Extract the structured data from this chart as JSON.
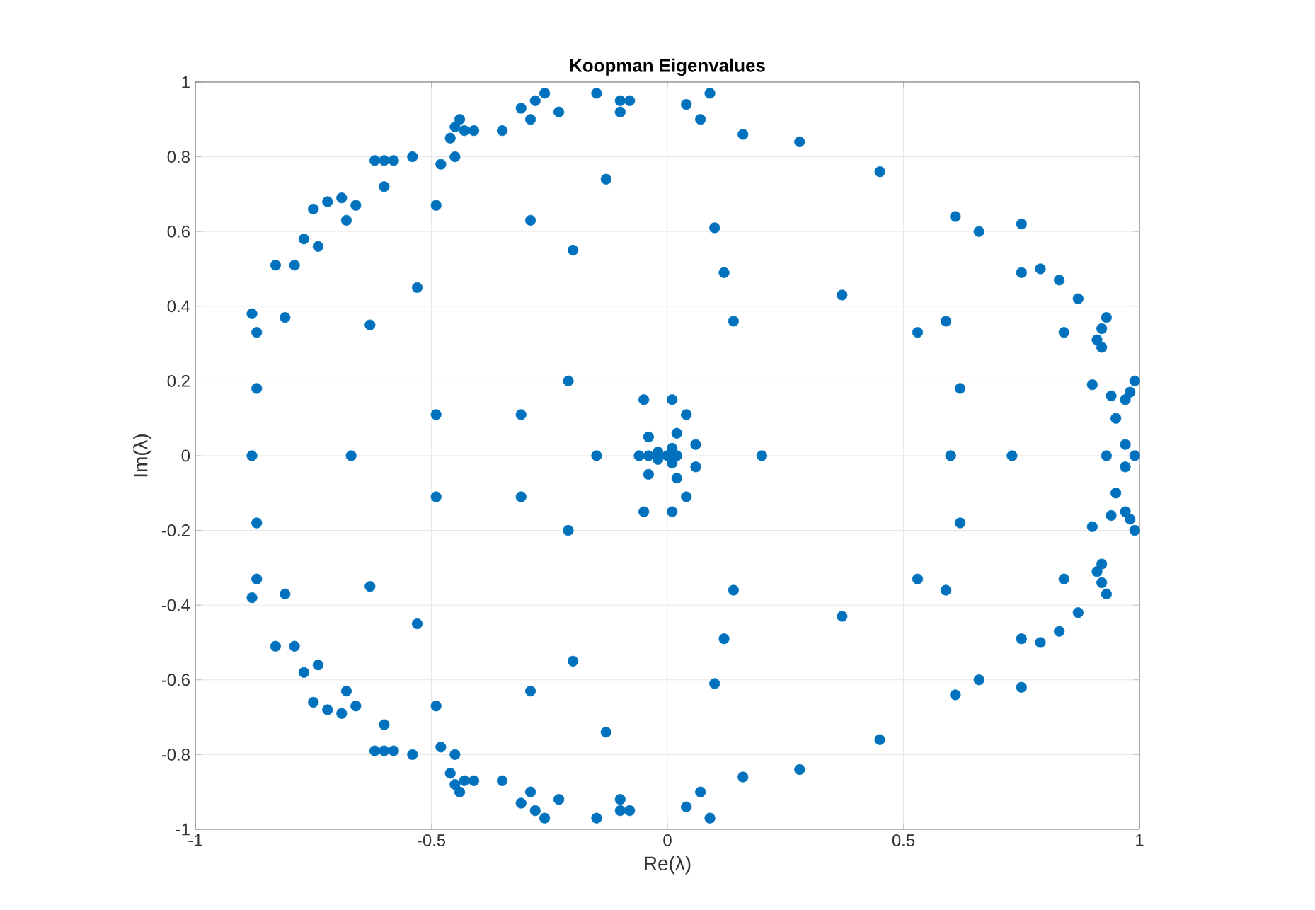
{
  "chart_data": {
    "type": "scatter",
    "title": "Koopman Eigenvalues",
    "xlabel": "Re(λ)",
    "ylabel": "Im(λ)",
    "x": [
      -0.88,
      -0.87,
      -0.81,
      -0.87,
      -0.83,
      -0.79,
      -0.77,
      -0.74,
      -0.75,
      -0.72,
      -0.69,
      -0.66,
      -0.68,
      -0.62,
      -0.6,
      -0.58,
      -0.54,
      -0.6,
      -0.63,
      -0.53,
      -0.49,
      -0.48,
      -0.45,
      -0.46,
      -0.44,
      -0.45,
      -0.43,
      -0.41,
      -0.35,
      -0.31,
      -0.29,
      -0.28,
      -0.26,
      -0.23,
      -0.15,
      -0.1,
      -0.08,
      -0.1,
      -0.13,
      -0.29,
      -0.2,
      -0.21,
      -0.31,
      -0.49,
      -0.05,
      0.01,
      0.04,
      -0.04,
      0.02,
      0.06,
      -0.02,
      0.01,
      0.04,
      0.09,
      0.07,
      0.16,
      0.28,
      0.45,
      0.1,
      0.12,
      0.14,
      0.37,
      0.61,
      0.66,
      0.75,
      0.75,
      0.79,
      0.83,
      0.87,
      0.93,
      0.92,
      0.91,
      0.92,
      0.84,
      0.53,
      0.59,
      0.62,
      0.9,
      0.94,
      0.99,
      0.98,
      0.97,
      0.95,
      0.97,
      -0.88,
      -0.87,
      -0.81,
      -0.87,
      -0.83,
      -0.79,
      -0.77,
      -0.74,
      -0.75,
      -0.72,
      -0.69,
      -0.66,
      -0.68,
      -0.62,
      -0.6,
      -0.58,
      -0.54,
      -0.6,
      -0.63,
      -0.53,
      -0.49,
      -0.48,
      -0.45,
      -0.46,
      -0.44,
      -0.45,
      -0.43,
      -0.41,
      -0.35,
      -0.31,
      -0.29,
      -0.28,
      -0.26,
      -0.23,
      -0.15,
      -0.1,
      -0.08,
      -0.1,
      -0.13,
      -0.29,
      -0.2,
      -0.21,
      -0.31,
      -0.49,
      -0.05,
      0.01,
      0.04,
      -0.04,
      0.02,
      0.06,
      -0.02,
      0.01,
      0.04,
      0.09,
      0.07,
      0.16,
      0.28,
      0.45,
      0.1,
      0.12,
      0.14,
      0.37,
      0.61,
      0.66,
      0.75,
      0.75,
      0.79,
      0.83,
      0.87,
      0.93,
      0.92,
      0.91,
      0.92,
      0.84,
      0.53,
      0.59,
      0.62,
      0.9,
      0.94,
      0.99,
      0.98,
      0.97,
      0.95,
      0.97,
      -0.88,
      -0.67,
      -0.15,
      -0.06,
      -0.04,
      0,
      0.02,
      0.2,
      0.6,
      0.73,
      0.93,
      0.99
    ],
    "values": [
      0.38,
      0.33,
      0.37,
      0.18,
      0.51,
      0.51,
      0.58,
      0.56,
      0.66,
      0.68,
      0.69,
      0.67,
      0.63,
      0.79,
      0.79,
      0.79,
      0.8,
      0.72,
      0.35,
      0.45,
      0.67,
      0.78,
      0.8,
      0.85,
      0.9,
      0.88,
      0.87,
      0.87,
      0.87,
      0.93,
      0.9,
      0.95,
      0.97,
      0.92,
      0.97,
      0.95,
      0.95,
      0.92,
      0.74,
      0.63,
      0.55,
      0.2,
      0.11,
      0.11,
      0.15,
      0.15,
      0.11,
      0.05,
      0.06,
      0.03,
      0.01,
      0.02,
      0.94,
      0.97,
      0.9,
      0.86,
      0.84,
      0.76,
      0.61,
      0.49,
      0.36,
      0.43,
      0.64,
      0.6,
      0.62,
      0.49,
      0.5,
      0.47,
      0.42,
      0.37,
      0.34,
      0.31,
      0.29,
      0.33,
      0.33,
      0.36,
      0.18,
      0.19,
      0.16,
      0.2,
      0.17,
      0.15,
      0.1,
      0.03,
      -0.38,
      -0.33,
      -0.37,
      -0.18,
      -0.51,
      -0.51,
      -0.58,
      -0.56,
      -0.66,
      -0.68,
      -0.69,
      -0.67,
      -0.63,
      -0.79,
      -0.79,
      -0.79,
      -0.8,
      -0.72,
      -0.35,
      -0.45,
      -0.67,
      -0.78,
      -0.8,
      -0.85,
      -0.9,
      -0.88,
      -0.87,
      -0.87,
      -0.87,
      -0.93,
      -0.9,
      -0.95,
      -0.97,
      -0.92,
      -0.97,
      -0.95,
      -0.95,
      -0.92,
      -0.74,
      -0.63,
      -0.55,
      -0.2,
      -0.11,
      -0.11,
      -0.15,
      -0.15,
      -0.11,
      -0.05,
      -0.06,
      -0.03,
      -0.01,
      -0.02,
      -0.94,
      -0.97,
      -0.9,
      -0.86,
      -0.84,
      -0.76,
      -0.61,
      -0.49,
      -0.36,
      -0.43,
      -0.64,
      -0.6,
      -0.62,
      -0.49,
      -0.5,
      -0.47,
      -0.42,
      -0.37,
      -0.34,
      -0.31,
      -0.29,
      -0.33,
      -0.33,
      -0.36,
      -0.18,
      -0.19,
      -0.16,
      -0.2,
      -0.17,
      -0.15,
      -0.1,
      -0.03,
      0,
      0,
      0,
      0,
      0,
      0,
      0,
      0,
      0,
      0,
      0,
      0
    ],
    "color": "#0072bd",
    "xlim": [
      -1,
      1
    ],
    "ylim": [
      -1,
      1
    ],
    "xticks": [
      -1,
      -0.5,
      0,
      0.5,
      1
    ],
    "yticks": [
      -1,
      -0.8,
      -0.6,
      -0.4,
      -0.2,
      0,
      0.2,
      0.4,
      0.6,
      0.8,
      1
    ],
    "grid": true,
    "marker": "circle"
  }
}
